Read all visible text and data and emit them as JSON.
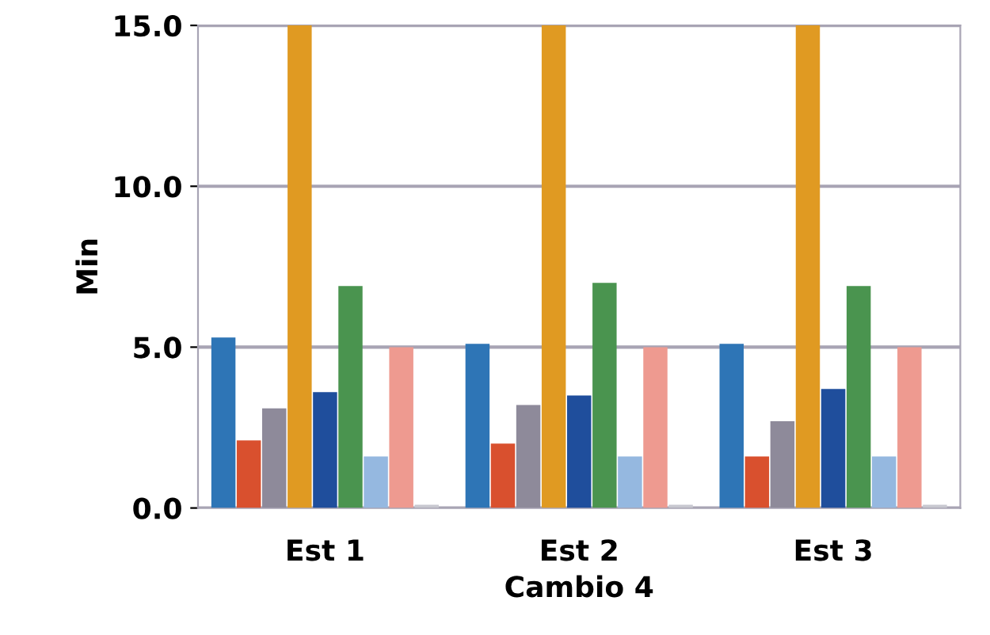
{
  "chart_data": {
    "type": "bar",
    "xlabel": "Cambio 4",
    "ylabel": "Min",
    "categories": [
      "Est 1",
      "Est 2",
      "Est 3"
    ],
    "series": [
      {
        "color": "#2e75b6",
        "values": [
          5.3,
          5.1,
          5.1
        ]
      },
      {
        "color": "#d9502e",
        "values": [
          2.1,
          2.0,
          1.6
        ]
      },
      {
        "color": "#8e8a9a",
        "values": [
          3.1,
          3.2,
          2.7
        ]
      },
      {
        "color": "#e09a22",
        "values": [
          15.0,
          15.0,
          15.0
        ]
      },
      {
        "color": "#1f4e9c",
        "values": [
          3.6,
          3.5,
          3.7
        ]
      },
      {
        "color": "#4a944f",
        "values": [
          6.9,
          7.0,
          6.9
        ]
      },
      {
        "color": "#95b8e0",
        "values": [
          1.6,
          1.6,
          1.6
        ]
      },
      {
        "color": "#ee9a90",
        "values": [
          5.0,
          5.0,
          5.0
        ]
      },
      {
        "color": "#c8c8d0",
        "values": [
          0.1,
          0.1,
          0.1
        ]
      }
    ],
    "ylim": [
      0,
      15
    ],
    "yticks": [
      {
        "value": 0,
        "label": "0.0"
      },
      {
        "value": 5,
        "label": "5.0"
      },
      {
        "value": 10,
        "label": "10.0"
      },
      {
        "value": 15,
        "label": "15.0"
      }
    ],
    "grid": "y",
    "legend": false
  }
}
